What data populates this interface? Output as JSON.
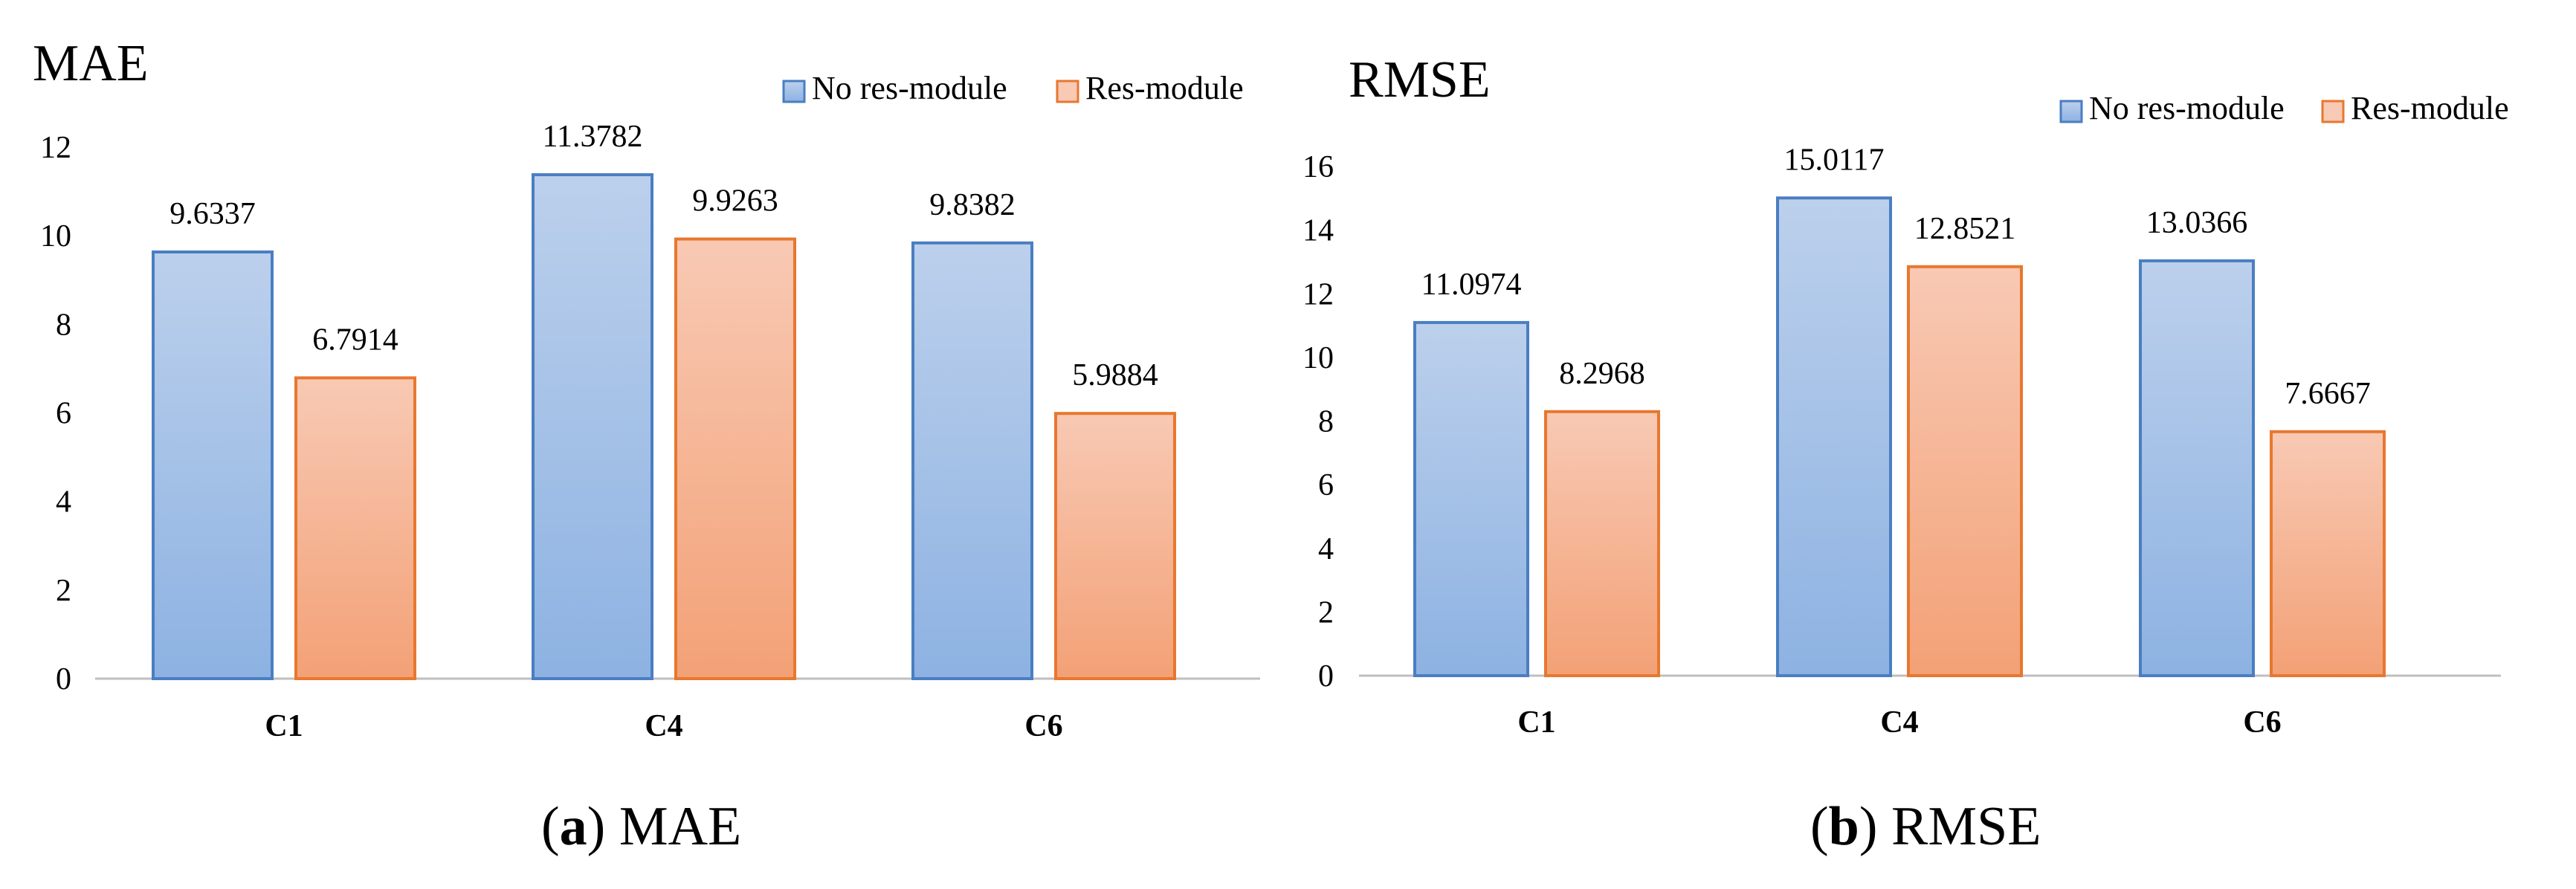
{
  "colors": {
    "no_res_top": "#bcd0ec",
    "no_res_bottom": "#8db2e2",
    "no_res_stroke": "#4a7ec2",
    "res_top": "#f8c9b4",
    "res_bottom": "#f3a176",
    "res_stroke": "#e8772e",
    "axis": "#bfbfbf"
  },
  "chart_data": [
    {
      "type": "bar",
      "title": "MAE",
      "categories": [
        "C1",
        "C4",
        "C6"
      ],
      "series": [
        {
          "name": "No res-module",
          "values": [
            9.6337,
            11.3782,
            9.8382
          ],
          "labels": [
            "9.6337",
            "11.3782",
            "9.8382"
          ]
        },
        {
          "name": "Res-module",
          "values": [
            6.7914,
            9.9263,
            5.9884
          ],
          "labels": [
            "6.7914",
            "9.9263",
            "5.9884"
          ]
        }
      ],
      "ylim": [
        0,
        12
      ],
      "yticks": [
        "0",
        "2",
        "4",
        "6",
        "8",
        "10",
        "12"
      ],
      "grid": false,
      "legend_position": "top-right",
      "caption": {
        "letter": "a",
        "text": "MAE"
      }
    },
    {
      "type": "bar",
      "title": "RMSE",
      "categories": [
        "C1",
        "C4",
        "C6"
      ],
      "series": [
        {
          "name": "No res-module",
          "values": [
            11.0974,
            15.0117,
            13.0366
          ],
          "labels": [
            "11.0974",
            "15.0117",
            "13.0366"
          ]
        },
        {
          "name": "Res-module",
          "values": [
            8.2968,
            12.8521,
            7.6667
          ],
          "labels": [
            "8.2968",
            "12.8521",
            "7.6667"
          ]
        }
      ],
      "ylim": [
        0,
        16
      ],
      "yticks": [
        "0",
        "2",
        "4",
        "6",
        "8",
        "10",
        "12",
        "14",
        "16"
      ],
      "grid": false,
      "legend_position": "top-right",
      "caption": {
        "letter": "b",
        "text": "RMSE"
      }
    }
  ]
}
